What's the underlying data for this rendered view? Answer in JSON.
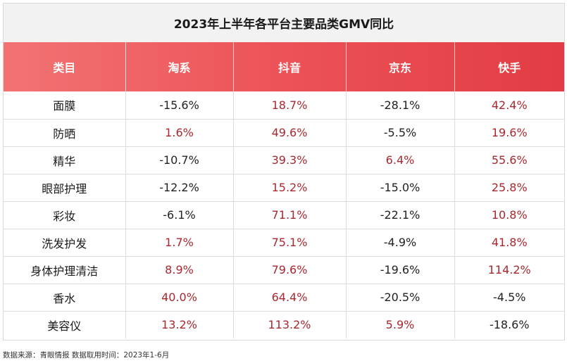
{
  "title": "2023年上半年各平台主要品类GMV同比",
  "headers": [
    "类目",
    "淘系",
    "抖音",
    "京东",
    "快手"
  ],
  "rows": [
    {
      "category": "面膜",
      "values": [
        "-15.6%",
        "18.7%",
        "-28.1%",
        "42.4%"
      ]
    },
    {
      "category": "防晒",
      "values": [
        "1.6%",
        "49.6%",
        "-5.5%",
        "19.6%"
      ]
    },
    {
      "category": "精华",
      "values": [
        "-10.7%",
        "39.3%",
        "6.4%",
        "55.6%"
      ]
    },
    {
      "category": "眼部护理",
      "values": [
        "-12.2%",
        "15.2%",
        "-15.0%",
        "25.8%"
      ]
    },
    {
      "category": "彩妆",
      "values": [
        "-6.1%",
        "71.1%",
        "-22.1%",
        "10.8%"
      ]
    },
    {
      "category": "洗发护发",
      "values": [
        "1.7%",
        "75.1%",
        "-4.9%",
        "41.8%"
      ]
    },
    {
      "category": "身体护理清洁",
      "values": [
        "8.9%",
        "79.6%",
        "-19.6%",
        "114.2%"
      ]
    },
    {
      "category": "香水",
      "values": [
        "40.0%",
        "64.4%",
        "-20.5%",
        "-4.5%"
      ]
    },
    {
      "category": "美容仪",
      "values": [
        "13.2%",
        "113.2%",
        "5.9%",
        "-18.6%"
      ]
    }
  ],
  "colors": {
    "positive": "#a8282f",
    "negative": "#222222",
    "header_start": "#f27374",
    "header_end": "#e23c44"
  },
  "source": "数据来源：青眼情报  数据取用时间：2023年1-6月"
}
